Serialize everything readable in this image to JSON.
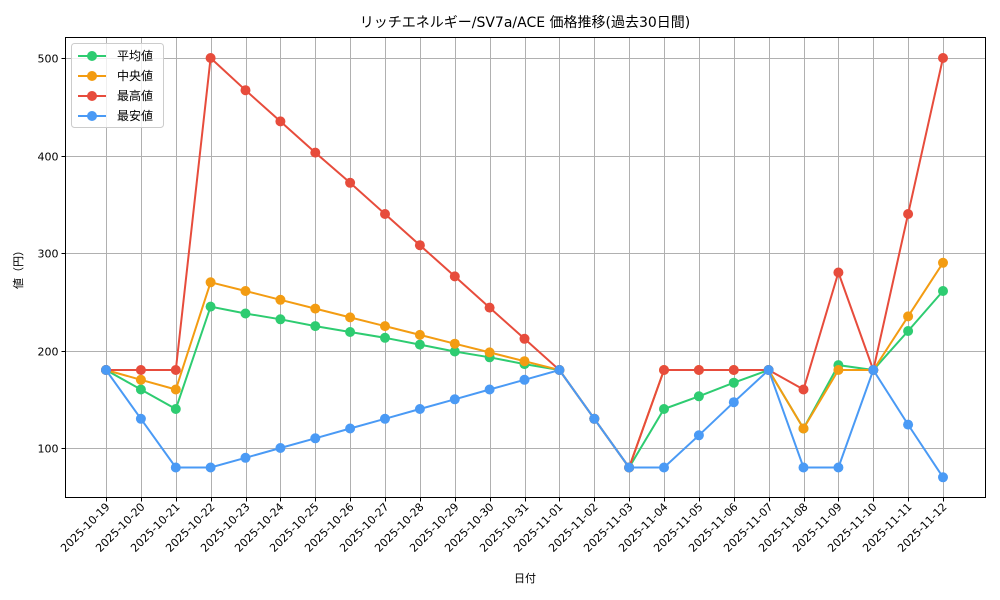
{
  "chart_data": {
    "type": "line",
    "title": "リッチエネルギー/SV7a/ACE 価格推移(過去30日間)",
    "xlabel": "日付",
    "ylabel": "値（円）",
    "ylim": [
      47,
      522
    ],
    "yticks": [
      100,
      200,
      300,
      400,
      500
    ],
    "grid": true,
    "legend_position": "upper left",
    "categories": [
      "2025-10-19",
      "2025-10-20",
      "2025-10-21",
      "2025-10-22",
      "2025-10-23",
      "2025-10-24",
      "2025-10-25",
      "2025-10-26",
      "2025-10-27",
      "2025-10-28",
      "2025-10-29",
      "2025-10-30",
      "2025-10-31",
      "2025-11-01",
      "2025-11-02",
      "2025-11-03",
      "2025-11-04",
      "2025-11-05",
      "2025-11-06",
      "2025-11-07",
      "2025-11-08",
      "2025-11-09",
      "2025-11-10",
      "2025-11-11",
      "2025-11-12"
    ],
    "series": [
      {
        "name": "平均値",
        "color": "#2ecc71",
        "values": [
          180,
          160,
          140,
          245,
          238,
          232,
          225,
          219,
          213,
          206,
          199,
          193,
          186,
          180,
          130,
          80,
          140,
          153,
          167,
          180,
          120,
          185,
          180,
          220,
          261
        ]
      },
      {
        "name": "中央値",
        "color": "#f39c12",
        "values": [
          180,
          170,
          160,
          270,
          261,
          252,
          243,
          234,
          225,
          216,
          207,
          198,
          189,
          180,
          130,
          80,
          180,
          180,
          180,
          180,
          120,
          180,
          180,
          235,
          290
        ]
      },
      {
        "name": "最高値",
        "color": "#e74c3c",
        "values": [
          180,
          180,
          180,
          500,
          467,
          435,
          403,
          372,
          340,
          308,
          276,
          244,
          212,
          180,
          130,
          80,
          180,
          180,
          180,
          180,
          160,
          280,
          180,
          340,
          500
        ]
      },
      {
        "name": "最安値",
        "color": "#4a9af5",
        "values": [
          180,
          130,
          80,
          80,
          90,
          100,
          110,
          120,
          130,
          140,
          150,
          160,
          170,
          180,
          130,
          80,
          80,
          113,
          147,
          180,
          80,
          80,
          180,
          124,
          70
        ]
      }
    ]
  }
}
